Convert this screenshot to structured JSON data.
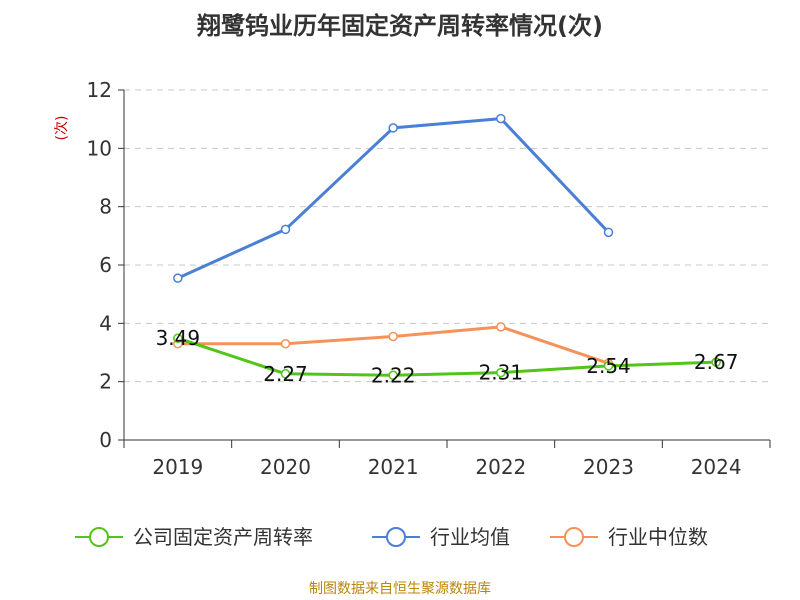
{
  "chart_data": {
    "type": "line",
    "title": "翔鹭钨业历年固定资产周转率情况(次)",
    "ylabel": "(次)",
    "xlabel": "",
    "categories": [
      "2019",
      "2020",
      "2021",
      "2022",
      "2023",
      "2024"
    ],
    "ylim": [
      0,
      12
    ],
    "yticks": [
      0,
      2,
      4,
      6,
      8,
      10,
      12
    ],
    "grid": true,
    "legend_position": "bottom",
    "series": [
      {
        "name": "公司固定资产周转率",
        "color": "#52c41a",
        "values": [
          3.49,
          2.27,
          2.22,
          2.31,
          2.54,
          2.67
        ],
        "labels": [
          "3.49",
          "2.27",
          "2.22",
          "2.31",
          "2.54",
          "2.67"
        ]
      },
      {
        "name": "行业均值",
        "color": "#4a7fd6",
        "values": [
          5.55,
          7.22,
          10.7,
          11.02,
          7.12,
          null
        ]
      },
      {
        "name": "行业中位数",
        "color": "#f5925a",
        "values": [
          3.3,
          3.3,
          3.55,
          3.88,
          2.63,
          null
        ]
      }
    ]
  },
  "footer": {
    "source": "制图数据来自恒生聚源数据库"
  }
}
